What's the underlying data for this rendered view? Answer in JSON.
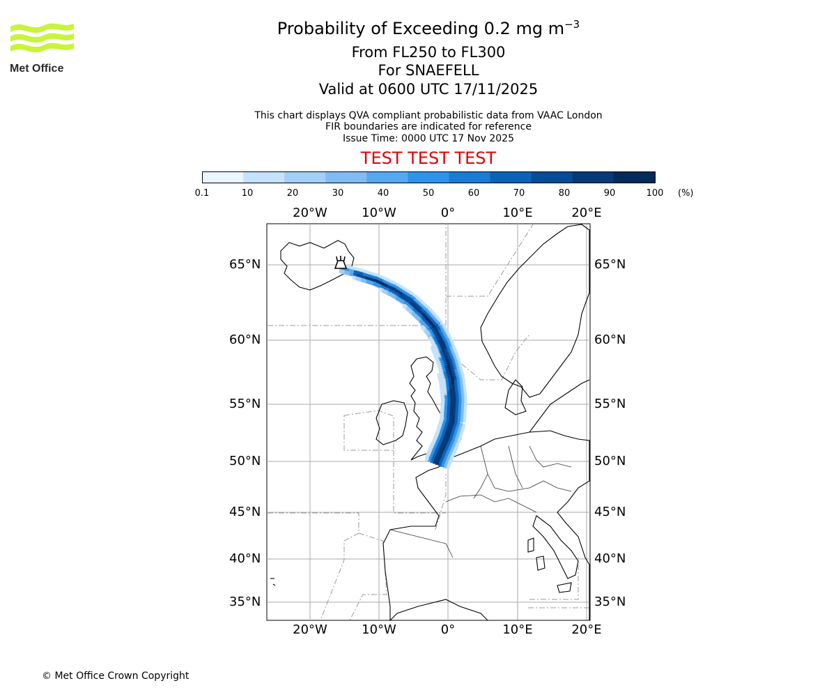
{
  "header": {
    "title": "Probability of Exceeding 0.2 mg m",
    "title_sup": "−3",
    "level": "From FL250 to FL300",
    "volcano": "For SNAEFELL",
    "valid": "Valid at 0600 UTC 17/11/2025",
    "info_line1": "This chart displays QVA compliant probabilistic data from VAAC London",
    "info_line2": "FIR boundaries are indicated for reference",
    "info_line3": "Issue Time: 0000 UTC 17 Nov 2025",
    "test_banner": "TEST TEST TEST"
  },
  "logo": {
    "text": "Met Office",
    "color": "#c8f43a"
  },
  "colorbar": {
    "ticks": [
      "0.1",
      "10",
      "20",
      "30",
      "40",
      "50",
      "60",
      "70",
      "80",
      "90",
      "100"
    ],
    "unit": "(%)",
    "colors": [
      "#ebf5ff",
      "#c6e2fb",
      "#a2cff7",
      "#7fbcf3",
      "#55a8ef",
      "#2e93eb",
      "#1a7ad6",
      "#0c62b7",
      "#064c97",
      "#043a78",
      "#022a5a"
    ]
  },
  "map": {
    "lon_labels": [
      "20°W",
      "10°W",
      "0°",
      "10°E",
      "20°E"
    ],
    "lat_labels": [
      "65°N",
      "60°N",
      "55°N",
      "50°N",
      "45°N",
      "40°N",
      "35°N"
    ],
    "source_icon": "volcano-source-icon"
  },
  "footer": {
    "copyright": "© Met Office Crown Copyright"
  }
}
